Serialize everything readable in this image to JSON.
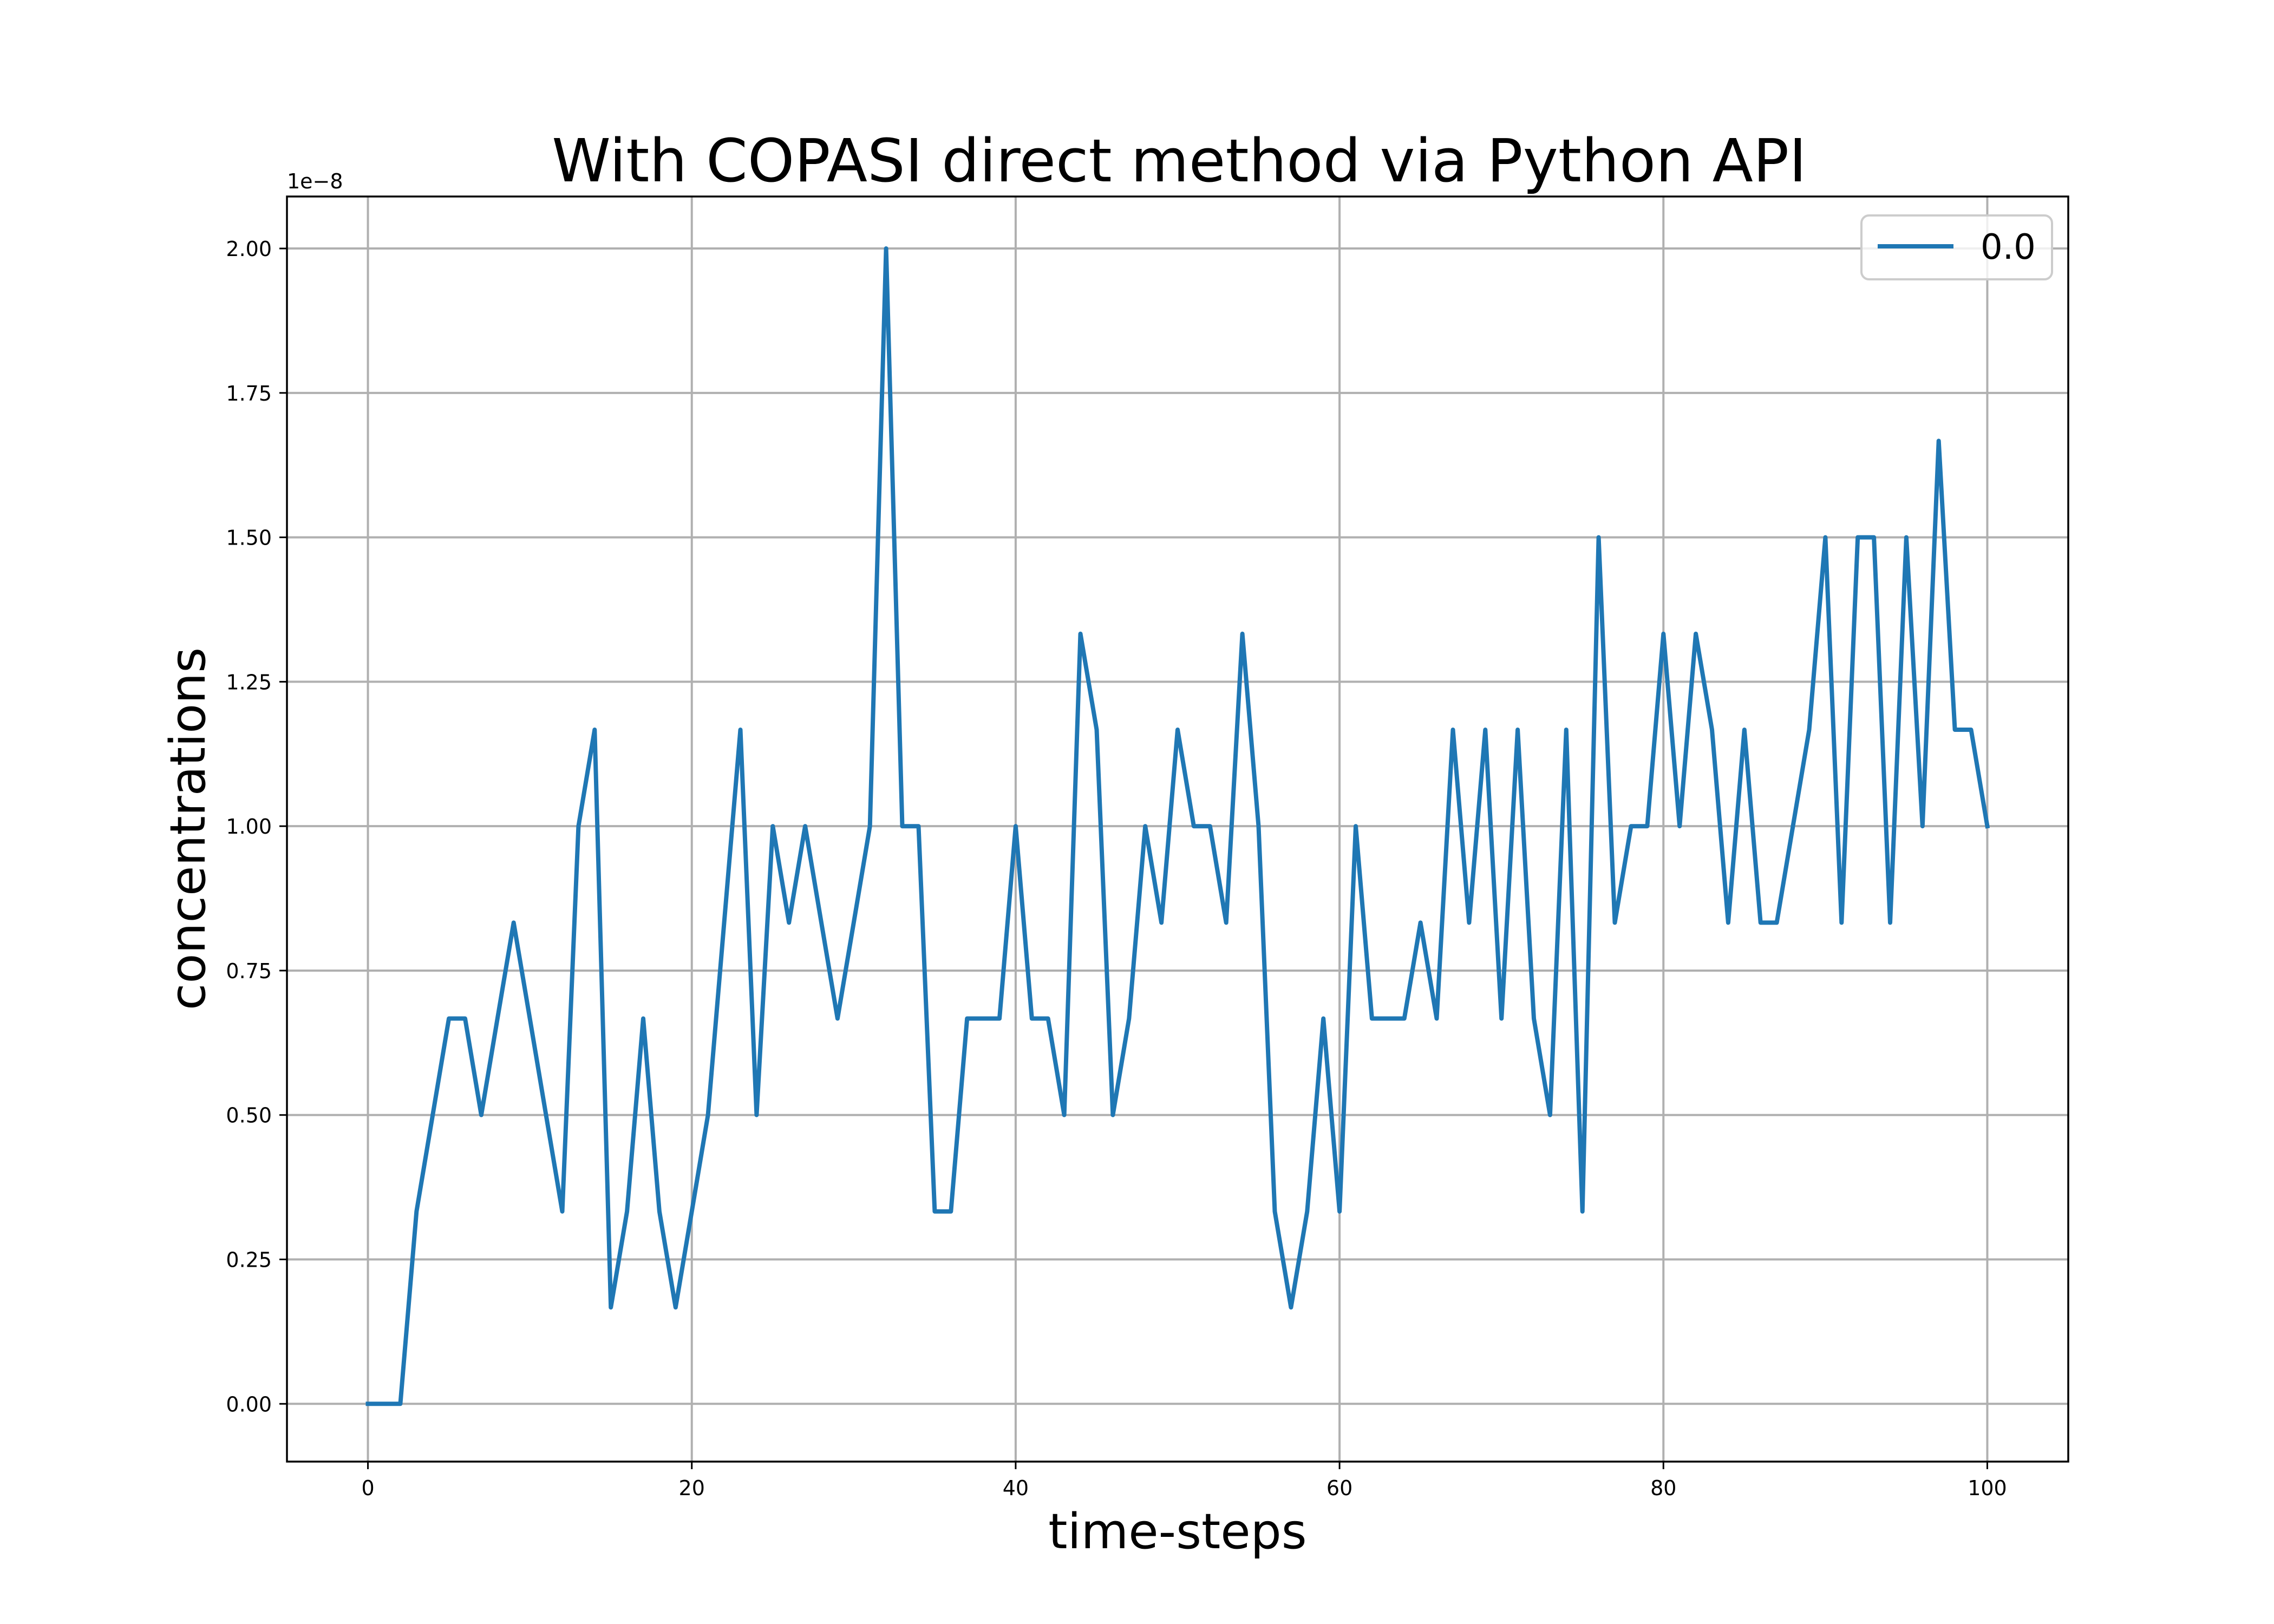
{
  "chart_data": {
    "type": "line",
    "title": "With COPASI direct method via Python API",
    "xlabel": "time-steps",
    "ylabel": "concentrations",
    "y_offset_label": "1e−8",
    "xlim": [
      -5,
      105
    ],
    "ylim": [
      -0.1,
      2.09
    ],
    "x_ticks": [
      0,
      20,
      40,
      60,
      80,
      100
    ],
    "x_tick_labels": [
      "0",
      "20",
      "40",
      "60",
      "80",
      "100"
    ],
    "y_ticks": [
      0,
      0.25,
      0.5,
      0.75,
      1.0,
      1.25,
      1.5,
      1.75,
      2.0
    ],
    "y_tick_labels": [
      "0.00",
      "0.25",
      "0.50",
      "0.75",
      "1.00",
      "1.25",
      "1.50",
      "1.75",
      "2.00"
    ],
    "grid": true,
    "legend_position": "top-right",
    "series_color": "#1f77b4",
    "series": [
      {
        "name": "0.0",
        "x": [
          0,
          1,
          2,
          3,
          4,
          5,
          6,
          7,
          8,
          9,
          10,
          11,
          12,
          13,
          14,
          15,
          16,
          17,
          18,
          19,
          20,
          21,
          22,
          23,
          24,
          25,
          26,
          27,
          28,
          29,
          30,
          31,
          32,
          33,
          34,
          35,
          36,
          37,
          38,
          39,
          40,
          41,
          42,
          43,
          44,
          45,
          46,
          47,
          48,
          49,
          50,
          51,
          52,
          53,
          54,
          55,
          56,
          57,
          58,
          59,
          60,
          61,
          62,
          63,
          64,
          65,
          66,
          67,
          68,
          69,
          70,
          71,
          72,
          73,
          74,
          75,
          76,
          77,
          78,
          79,
          80,
          81,
          82,
          83,
          84,
          85,
          86,
          87,
          88,
          89,
          90,
          91,
          92,
          93,
          94,
          95,
          96,
          97,
          98,
          99,
          100
        ],
        "values": [
          0,
          0,
          0,
          0.333,
          0.5,
          0.667,
          0.667,
          0.5,
          0.667,
          0.833,
          0.667,
          0.5,
          0.333,
          1.0,
          1.167,
          0.167,
          0.333,
          0.667,
          0.333,
          0.167,
          0.333,
          0.5,
          0.833,
          1.167,
          0.5,
          1.0,
          0.833,
          1.0,
          0.833,
          0.667,
          0.833,
          1.0,
          2.0,
          1.0,
          1.0,
          0.333,
          0.333,
          0.667,
          0.667,
          0.667,
          1.0,
          0.667,
          0.667,
          0.5,
          1.333,
          1.167,
          0.5,
          0.667,
          1.0,
          0.833,
          1.167,
          1.0,
          1.0,
          0.833,
          1.333,
          1.0,
          0.333,
          0.167,
          0.333,
          0.667,
          0.333,
          1.0,
          0.667,
          0.667,
          0.667,
          0.833,
          0.667,
          1.167,
          0.833,
          1.167,
          0.667,
          1.167,
          0.667,
          0.5,
          1.167,
          0.333,
          1.5,
          0.833,
          1.0,
          1.0,
          1.333,
          1.0,
          1.333,
          1.167,
          0.833,
          1.167,
          0.833,
          0.833,
          1.0,
          1.167,
          1.5,
          0.833,
          1.5,
          1.5,
          0.833,
          1.5,
          1.0,
          1.667,
          1.167,
          1.167,
          1.0
        ]
      }
    ]
  }
}
